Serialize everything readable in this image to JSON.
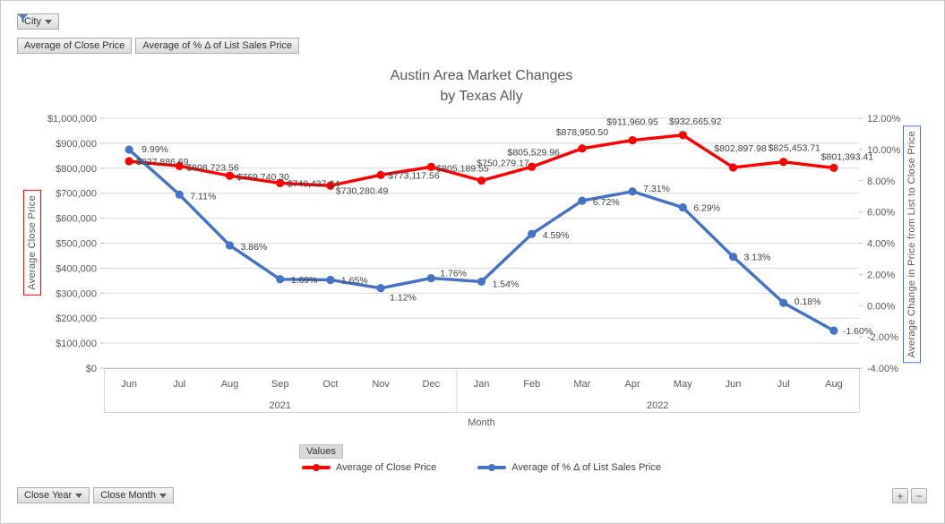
{
  "filter_button": {
    "label": "City"
  },
  "field_buttons": [
    "Average of Close Price",
    "Average of % Δ of List Sales Price"
  ],
  "chart_data": {
    "type": "line",
    "title": "Austin Area Market Changes by Texas Ally",
    "title_lines": [
      "Austin Area Market Changes",
      "by Texas Ally"
    ],
    "x_axis_title": "Month",
    "categories": [
      "Jun",
      "Jul",
      "Aug",
      "Sep",
      "Oct",
      "Nov",
      "Dec",
      "Jan",
      "Feb",
      "Mar",
      "Apr",
      "May",
      "Jun",
      "Jul",
      "Aug"
    ],
    "year_groups": [
      {
        "label": "2021",
        "span": 7
      },
      {
        "label": "2022",
        "span": 8
      }
    ],
    "series": [
      {
        "name": "Average of Close Price",
        "axis": "left",
        "color": "#ff0000",
        "values": [
          827886.69,
          808723.56,
          769740.3,
          740437.24,
          730280.49,
          773117.56,
          805189.55,
          750279.17,
          805529.96,
          878950.5,
          911960.95,
          932665.92,
          802897.98,
          825453.71,
          801393.41
        ],
        "labels": [
          "$827,886.69",
          "$808,723.56",
          "$769,740.30",
          "$740,437.24",
          "$730,280.49",
          "$773,117.56",
          "$805,189.55",
          "$750,279.17",
          "$805,529.96",
          "$878,950.50",
          "$911,960.95",
          "$932,665.92",
          "$802,897.98",
          "$825,453.71",
          "$801,393.41"
        ]
      },
      {
        "name": "Average of % Δ of List Sales Price",
        "axis": "right",
        "color": "#4472c4",
        "values": [
          9.99,
          7.11,
          3.86,
          1.69,
          1.65,
          1.12,
          1.76,
          1.54,
          4.59,
          6.72,
          7.31,
          6.29,
          3.13,
          0.18,
          -1.6
        ],
        "labels": [
          "9.99%",
          "7.11%",
          "3.86%",
          "1.69%",
          "1.65%",
          "1.12%",
          "1.76%",
          "1.54%",
          "4.59%",
          "6.72%",
          "7.31%",
          "6.29%",
          "3.13%",
          "0.18%",
          "-1.60%"
        ]
      }
    ],
    "left_axis": {
      "title": "Average Close Price",
      "min": 0,
      "max": 1000000,
      "step": 100000,
      "ticks": [
        "$1,000,000",
        "$900,000",
        "$800,000",
        "$700,000",
        "$600,000",
        "$500,000",
        "$400,000",
        "$300,000",
        "$200,000",
        "$100,000",
        "$0"
      ]
    },
    "right_axis": {
      "title": "Average Change in Price from List to Close Price",
      "min": -4,
      "max": 12,
      "step": 2,
      "ticks": [
        "12.00%",
        "10.00%",
        "8.00%",
        "6.00%",
        "4.00%",
        "2.00%",
        "0.00%",
        "-2.00%",
        "-4.00%"
      ]
    },
    "grid": true,
    "legend_position": "bottom"
  },
  "legend": {
    "values_button": "Values"
  },
  "bottom_buttons": [
    "Close Year",
    "Close Month"
  ],
  "zoom_controls": {
    "plus": "+",
    "minus": "−"
  }
}
